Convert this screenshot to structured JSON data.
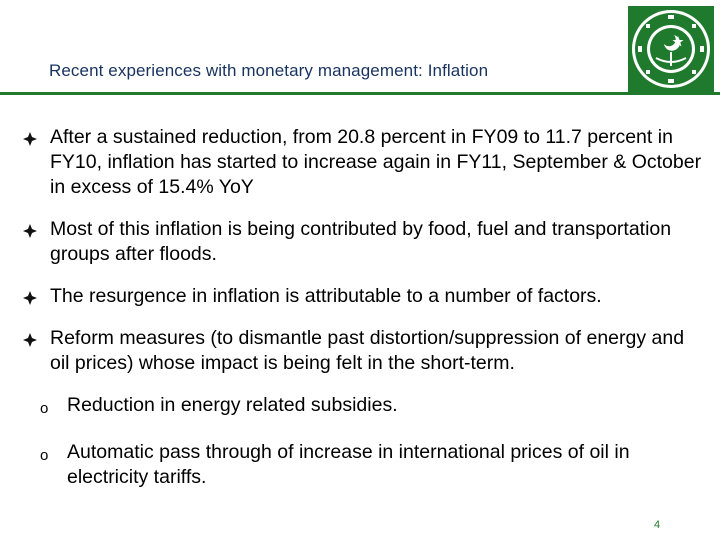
{
  "slide": {
    "title": "Recent experiences with monetary management: Inflation",
    "page_number": "4",
    "accent_color": "#1f7a2e",
    "title_color": "#17325f",
    "logo_icon": "state-bank-of-pakistan-seal-icon"
  },
  "bullets": [
    {
      "text": "After a sustained reduction, from 20.8 percent in FY09 to 11.7 percent in FY10, inflation has started to increase again in FY11, September & October in excess of 15.4% YoY"
    },
    {
      "text": "Most of this inflation is being contributed by food, fuel and transportation groups after floods."
    },
    {
      "text": "The resurgence in inflation is attributable to a number of factors."
    },
    {
      "text": "Reform measures (to dismantle past distortion/suppression of energy and oil prices) whose impact is being felt in the short-term."
    }
  ],
  "sub_bullets": [
    {
      "marker": "o",
      "text": "Reduction in energy related subsidies."
    },
    {
      "marker": "o",
      "text": "Automatic pass through of increase in international prices of  oil in electricity tariffs."
    }
  ]
}
